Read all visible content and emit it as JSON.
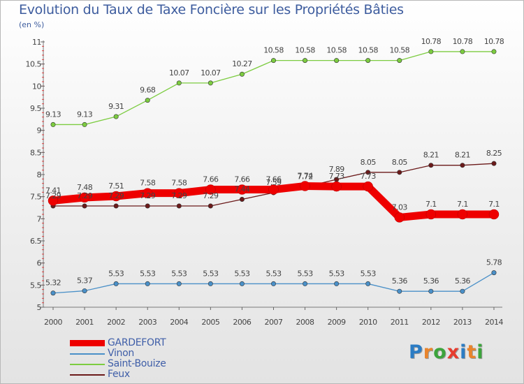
{
  "title": "Evolution du Taux de Taxe Foncière sur les Propriétés Bâties",
  "subtitle": "(en %)",
  "logo": {
    "letters": [
      "P",
      "r",
      "o",
      "x",
      "i",
      "t",
      "i"
    ],
    "colors": [
      "#2b7cc4",
      "#e8842c",
      "#3ca43c",
      "#e63c2e",
      "#2b7cc4",
      "#e8842c",
      "#3ca43c"
    ]
  },
  "chart_data": {
    "type": "line",
    "title": "Evolution du Taux de Taxe Foncière sur les Propriétés Bâties",
    "ylabel": "(en %)",
    "categories": [
      "2000",
      "2001",
      "2002",
      "2003",
      "2004",
      "2005",
      "2006",
      "2007",
      "2008",
      "2009",
      "2010",
      "2011",
      "2012",
      "2013",
      "2014"
    ],
    "ylim": [
      5,
      11
    ],
    "yticks": [
      5,
      5.5,
      6,
      6.5,
      7,
      7.5,
      8,
      8.5,
      9,
      9.5,
      10,
      10.5,
      11
    ],
    "ytick_labels": [
      "5",
      "5.5",
      "6",
      "6.5",
      "7",
      "7.5",
      "8",
      "8.5",
      "9",
      "9.5",
      "10",
      "10.5",
      "11"
    ],
    "grid": false,
    "legend_position": "bottom-left",
    "series": [
      {
        "name": "GARDEFORT",
        "color": "#ee0000",
        "values": [
          7.41,
          7.48,
          7.51,
          7.58,
          7.58,
          7.66,
          7.66,
          7.66,
          7.74,
          7.73,
          7.73,
          7.03,
          7.1,
          7.1,
          7.1
        ]
      },
      {
        "name": "Vinon",
        "color": "#4a90c8",
        "values": [
          5.32,
          5.37,
          5.53,
          5.53,
          5.53,
          5.53,
          5.53,
          5.53,
          5.53,
          5.53,
          5.53,
          5.36,
          5.36,
          5.36,
          5.78
        ]
      },
      {
        "name": "Saint-Bouize",
        "color": "#7ccc40",
        "values": [
          9.13,
          9.13,
          9.31,
          9.68,
          10.07,
          10.07,
          10.27,
          10.58,
          10.58,
          10.58,
          10.58,
          10.58,
          10.78,
          10.78,
          10.78
        ]
      },
      {
        "name": "Feux",
        "color": "#6b1a1a",
        "values": [
          7.29,
          7.29,
          7.29,
          7.29,
          7.29,
          7.29,
          7.44,
          7.59,
          7.72,
          7.89,
          8.05,
          8.05,
          8.21,
          8.21,
          8.25
        ]
      }
    ]
  }
}
